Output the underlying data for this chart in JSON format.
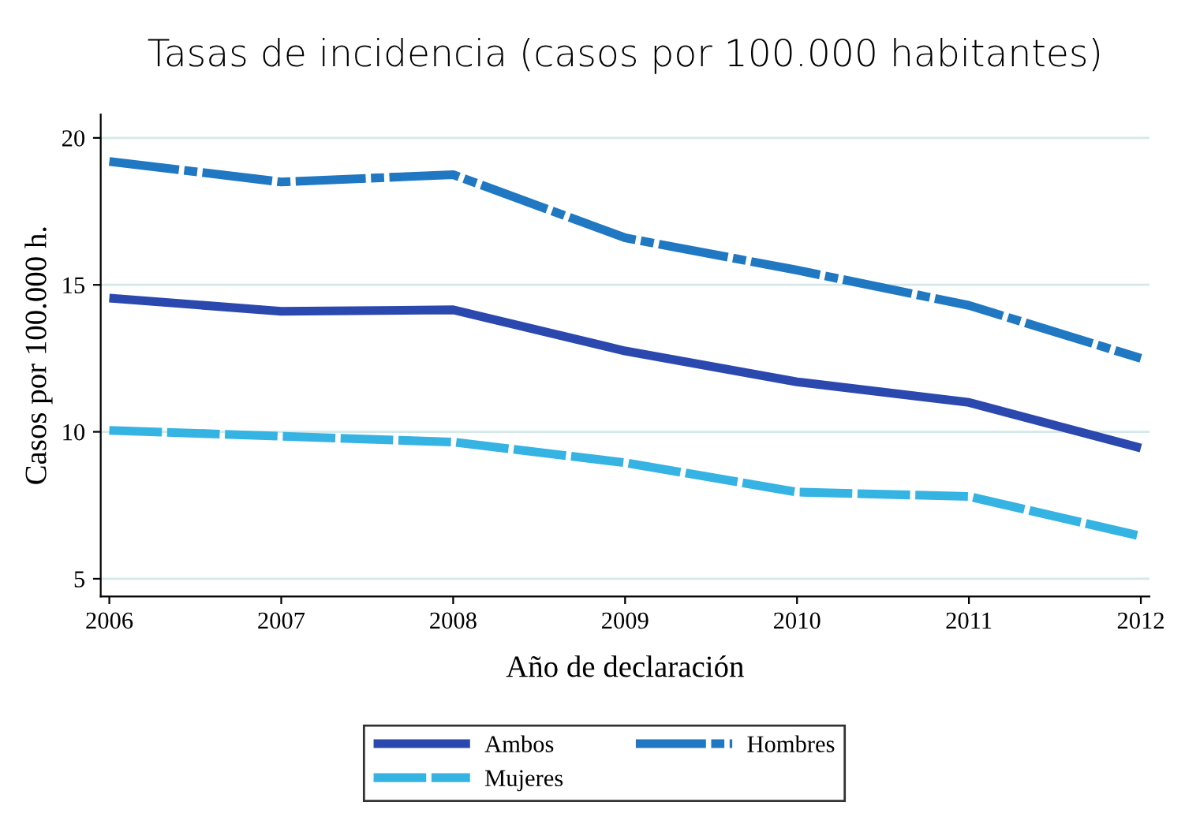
{
  "chart_data": {
    "type": "line",
    "title": "Tasas de incidencia (casos por 100.000 habitantes)",
    "xlabel": "Año de declaración",
    "ylabel": "Casos por 100.000 h.",
    "x": [
      2006,
      2007,
      2008,
      2009,
      2010,
      2011,
      2012
    ],
    "series": [
      {
        "name": "Ambos",
        "color": "#2b48ae",
        "line_style": "solid",
        "values": [
          14.55,
          14.1,
          14.15,
          12.75,
          11.7,
          11.0,
          9.45
        ]
      },
      {
        "name": "Hombres",
        "color": "#1f78c1",
        "line_style": "dashdot",
        "values": [
          19.2,
          18.5,
          18.75,
          16.6,
          15.5,
          14.3,
          12.5
        ]
      },
      {
        "name": "Mujeres",
        "color": "#35b3e3",
        "line_style": "dashed",
        "values": [
          10.05,
          9.85,
          9.65,
          8.95,
          7.95,
          7.8,
          6.45
        ]
      }
    ],
    "xlim": [
      2005.95,
      2012.05
    ],
    "xticks": [
      2006,
      2007,
      2008,
      2009,
      2010,
      2011,
      2012
    ],
    "ylim": [
      4.4,
      20.8
    ],
    "yticks": [
      5,
      10,
      15,
      20
    ],
    "grid": "y",
    "legend": "bottom",
    "marker": "none"
  }
}
